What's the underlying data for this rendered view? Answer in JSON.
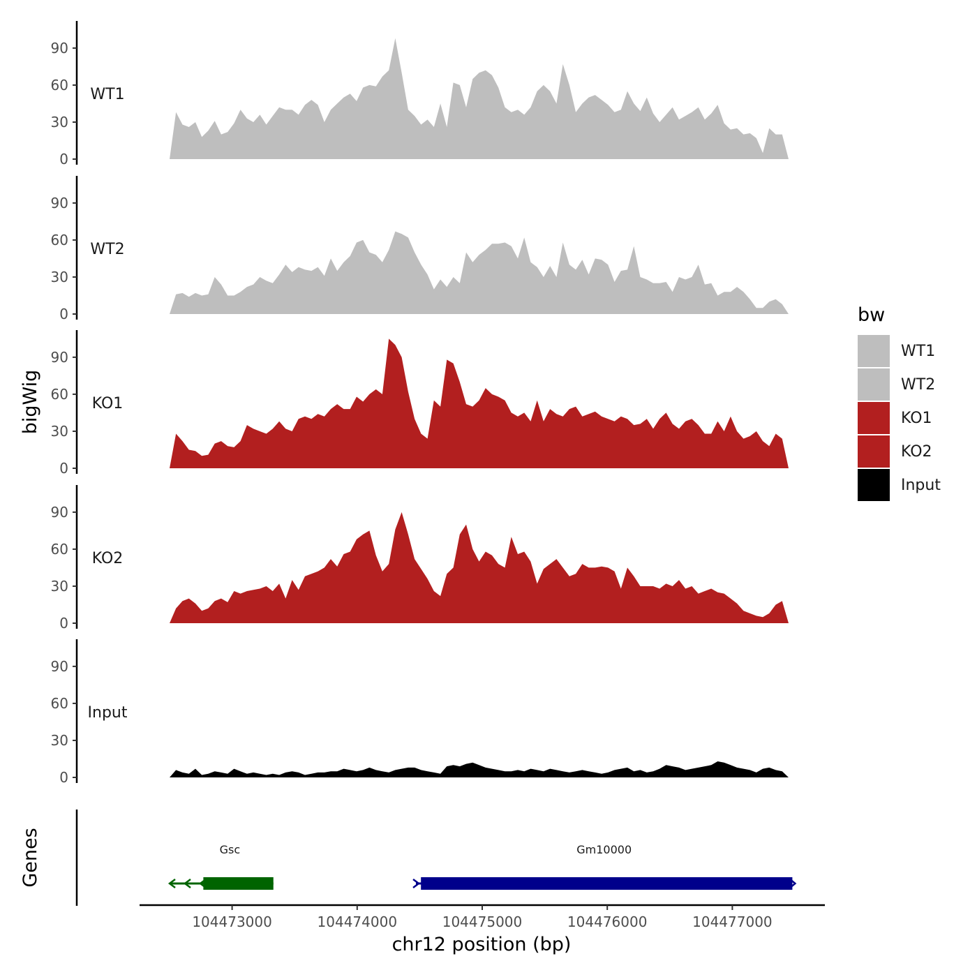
{
  "chart_data": {
    "type": "area",
    "title": "",
    "chromosome": "chr12",
    "xlabel": "chr12 position (bp)",
    "ylabel": "bigWig",
    "genes_label": "Genes",
    "xlim": [
      104472260,
      104477740
    ],
    "ylim": [
      0,
      112
    ],
    "x_ticks": [
      104473000,
      104474000,
      104475000,
      104476000,
      104477000
    ],
    "y_ticks": [
      0,
      30,
      60,
      90
    ],
    "x_range": [
      104472500,
      104477450
    ],
    "legend": {
      "title": "bw",
      "position": "right",
      "entries": [
        {
          "label": "WT1",
          "color": "#bebebe"
        },
        {
          "label": "WT2",
          "color": "#bebebe"
        },
        {
          "label": "KO1",
          "color": "#b21f1f"
        },
        {
          "label": "KO2",
          "color": "#b21f1f"
        },
        {
          "label": "Input",
          "color": "#000000"
        }
      ]
    },
    "series": [
      {
        "name": "WT1",
        "color": "#bebebe",
        "values": [
          0,
          38,
          28,
          26,
          30,
          18,
          23,
          31,
          20,
          22,
          29,
          40,
          33,
          30,
          36,
          28,
          35,
          42,
          40,
          40,
          36,
          44,
          48,
          44,
          30,
          40,
          45,
          50,
          53,
          47,
          58,
          60,
          59,
          67,
          72,
          98,
          70,
          40,
          35,
          28,
          32,
          26,
          45,
          26,
          62,
          60,
          42,
          65,
          70,
          72,
          68,
          58,
          42,
          38,
          40,
          36,
          42,
          55,
          60,
          55,
          45,
          77,
          60,
          38,
          45,
          50,
          52,
          48,
          44,
          38,
          40,
          55,
          45,
          39,
          50,
          37,
          30,
          36,
          42,
          32,
          35,
          38,
          42,
          32,
          37,
          44,
          29,
          24,
          25,
          20,
          21,
          17,
          5,
          25,
          20,
          20,
          0
        ]
      },
      {
        "name": "WT2",
        "color": "#bebebe",
        "values": [
          0,
          16,
          17,
          14,
          17,
          15,
          16,
          30,
          24,
          15,
          15,
          18,
          22,
          24,
          30,
          27,
          25,
          32,
          40,
          34,
          38,
          36,
          35,
          38,
          31,
          45,
          35,
          42,
          47,
          58,
          60,
          50,
          48,
          42,
          52,
          67,
          65,
          62,
          50,
          40,
          32,
          20,
          28,
          22,
          30,
          25,
          50,
          42,
          48,
          52,
          57,
          57,
          58,
          55,
          45,
          62,
          42,
          38,
          30,
          39,
          30,
          58,
          40,
          36,
          44,
          32,
          45,
          44,
          40,
          26,
          35,
          36,
          55,
          30,
          28,
          25,
          25,
          26,
          18,
          30,
          28,
          30,
          40,
          24,
          25,
          15,
          18,
          18,
          22,
          18,
          12,
          5,
          5,
          10,
          12,
          8,
          0
        ]
      },
      {
        "name": "KO1",
        "color": "#b21f1f",
        "values": [
          0,
          28,
          22,
          15,
          14,
          10,
          11,
          20,
          22,
          18,
          17,
          22,
          35,
          32,
          30,
          28,
          32,
          38,
          32,
          30,
          40,
          42,
          40,
          44,
          42,
          48,
          52,
          48,
          48,
          58,
          54,
          60,
          64,
          60,
          105,
          100,
          90,
          62,
          40,
          28,
          24,
          55,
          50,
          88,
          85,
          70,
          52,
          50,
          55,
          65,
          60,
          58,
          55,
          45,
          42,
          45,
          38,
          55,
          38,
          48,
          44,
          42,
          48,
          50,
          42,
          44,
          46,
          42,
          40,
          38,
          42,
          40,
          35,
          36,
          40,
          32,
          40,
          45,
          36,
          32,
          38,
          40,
          35,
          28,
          28,
          38,
          30,
          42,
          30,
          24,
          26,
          30,
          22,
          18,
          28,
          24,
          0
        ]
      },
      {
        "name": "KO2",
        "color": "#b21f1f",
        "values": [
          0,
          12,
          18,
          20,
          16,
          10,
          12,
          18,
          20,
          17,
          26,
          24,
          26,
          27,
          28,
          30,
          26,
          32,
          20,
          35,
          27,
          38,
          40,
          42,
          45,
          52,
          46,
          56,
          58,
          68,
          72,
          75,
          55,
          42,
          48,
          76,
          90,
          72,
          52,
          44,
          36,
          26,
          22,
          40,
          45,
          72,
          80,
          60,
          50,
          58,
          55,
          48,
          45,
          70,
          56,
          58,
          50,
          32,
          44,
          48,
          52,
          45,
          38,
          40,
          48,
          45,
          45,
          46,
          45,
          42,
          28,
          45,
          38,
          30,
          30,
          30,
          28,
          32,
          30,
          35,
          28,
          30,
          24,
          26,
          28,
          25,
          24,
          20,
          16,
          10,
          8,
          6,
          5,
          8,
          15,
          18,
          0
        ]
      },
      {
        "name": "Input",
        "color": "#000000",
        "values": [
          0,
          6,
          4,
          3,
          7,
          2,
          3,
          5,
          4,
          3,
          7,
          5,
          3,
          4,
          3,
          2,
          3,
          2,
          4,
          5,
          4,
          2,
          3,
          4,
          4,
          5,
          5,
          7,
          6,
          5,
          6,
          8,
          6,
          5,
          4,
          6,
          7,
          8,
          8,
          6,
          5,
          4,
          3,
          9,
          10,
          9,
          11,
          12,
          10,
          8,
          7,
          6,
          5,
          5,
          6,
          5,
          7,
          6,
          5,
          7,
          6,
          5,
          4,
          5,
          6,
          5,
          4,
          3,
          4,
          6,
          7,
          8,
          5,
          6,
          4,
          5,
          7,
          10,
          9,
          8,
          6,
          7,
          8,
          9,
          10,
          13,
          12,
          10,
          8,
          7,
          6,
          4,
          7,
          8,
          6,
          5,
          0
        ]
      }
    ],
    "genes": [
      {
        "name": "Gsc",
        "start": 104472500,
        "end": 104473330,
        "cds_start": 104472770,
        "cds_end": 104473330,
        "strand": "-",
        "color": "#006400"
      },
      {
        "name": "Gm10000",
        "start": 104474470,
        "end": 104477480,
        "cds_start": 104474510,
        "cds_end": 104477480,
        "strand": "+",
        "color": "#00008b"
      }
    ]
  }
}
